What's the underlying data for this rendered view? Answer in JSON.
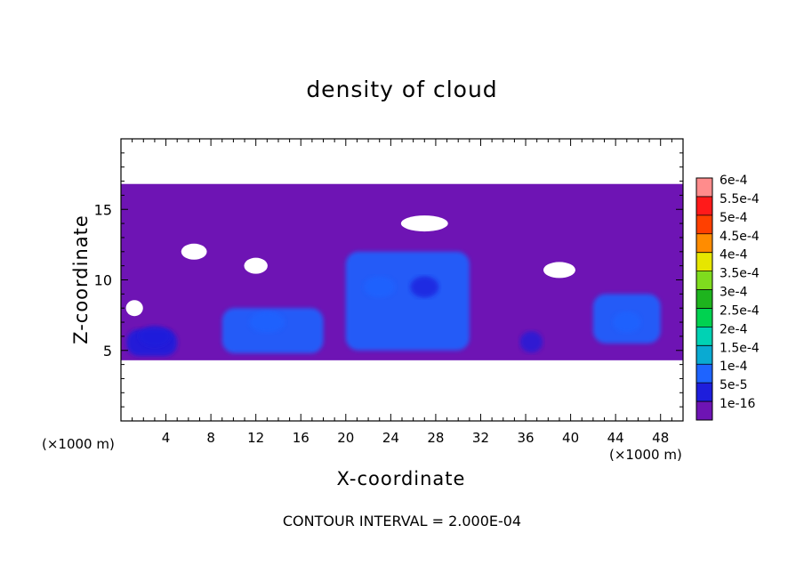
{
  "chart_data": {
    "type": "heatmap",
    "title": "density of cloud",
    "xlabel": "X-coordinate",
    "ylabel": "Z-coordinate",
    "x_unit": "(×1000 m)",
    "footer": "CONTOUR INTERVAL = 2.000E-04",
    "xlim": [
      0,
      50
    ],
    "ylim": [
      0,
      20
    ],
    "x_ticks": [
      4,
      8,
      12,
      16,
      20,
      24,
      28,
      32,
      36,
      40,
      44,
      48
    ],
    "y_ticks": [
      5,
      10,
      15
    ],
    "colorbar": {
      "levels": [
        "6e-4",
        "5.5e-4",
        "5e-4",
        "4.5e-4",
        "4e-4",
        "3.5e-4",
        "3e-4",
        "2.5e-4",
        "2e-4",
        "1.5e-4",
        "1e-4",
        "5e-5",
        "1e-16"
      ],
      "colors": [
        "#ff8c8c",
        "#ff1a1a",
        "#ff4000",
        "#ff8c00",
        "#e6e600",
        "#7fdc1e",
        "#1eb41e",
        "#00d250",
        "#00d2b4",
        "#0aaad2",
        "#1e64ff",
        "#1e1edc",
        "#6e14b4"
      ]
    },
    "cloud_regions": [
      {
        "x0": 0,
        "x1": 50,
        "z0": 4.3,
        "z1": 16.8,
        "level": "1e-16"
      },
      {
        "x0": 0.5,
        "x1": 5,
        "z0": 4.6,
        "z1": 6.5,
        "level": "5e-5"
      },
      {
        "x0": 9,
        "x1": 18,
        "z0": 4.8,
        "z1": 8.0,
        "level": "1e-4"
      },
      {
        "x0": 20,
        "x1": 31,
        "z0": 5.0,
        "z1": 12.0,
        "level": "1e-4"
      },
      {
        "x0": 42,
        "x1": 48,
        "z0": 5.5,
        "z1": 9.0,
        "level": "1e-4"
      }
    ]
  }
}
